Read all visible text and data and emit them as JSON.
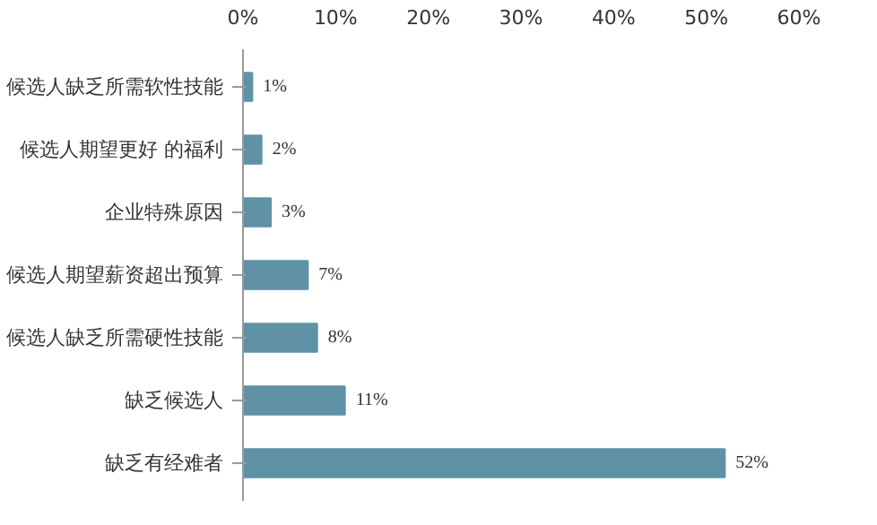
{
  "chart_data": {
    "type": "bar",
    "orientation": "horizontal",
    "categories": [
      "候选人缺乏所需软性技能",
      "候选人期望更好 的福利",
      "企业特殊原因",
      "候选人期望薪资超出预算",
      "候选人缺乏所需硬性技能",
      "缺乏候选人",
      "缺乏有经难者"
    ],
    "values": [
      1,
      2,
      3,
      7,
      8,
      11,
      52
    ],
    "value_labels": [
      "1%",
      "2%",
      "3%",
      "7%",
      "8%",
      "11%",
      "52%"
    ],
    "color": "#6092a6",
    "xlim": [
      0,
      60
    ],
    "xticks": [
      {
        "value": 0,
        "label": "0%"
      },
      {
        "value": 10,
        "label": "10%"
      },
      {
        "value": 20,
        "label": "20%"
      },
      {
        "value": 30,
        "label": "30%"
      },
      {
        "value": 40,
        "label": "40%"
      },
      {
        "value": 50,
        "label": "50%"
      },
      {
        "value": 60,
        "label": "60%"
      }
    ],
    "grid": false
  }
}
